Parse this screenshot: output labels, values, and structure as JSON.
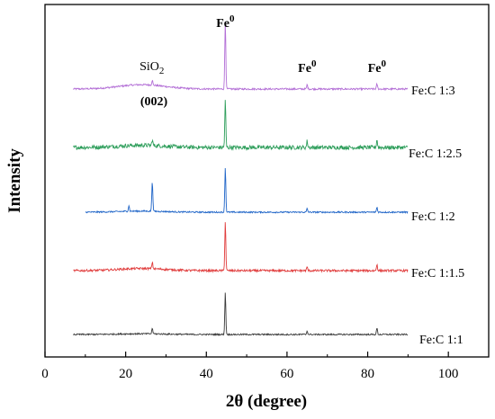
{
  "chart_data": {
    "type": "line",
    "title": "",
    "xlabel": "2θ (degree)",
    "ylabel": "Intensity",
    "xlim": [
      0,
      110
    ],
    "xticks": [
      0,
      20,
      40,
      60,
      80,
      100
    ],
    "yticks": false,
    "grid": false,
    "legend": "none",
    "series": [
      {
        "name": "Fe:C 1:3",
        "color": "#b36fd6",
        "x_range": [
          7,
          90
        ],
        "noise": 0.12,
        "hump": {
          "center": 24,
          "width": 8,
          "height": 0.6
        },
        "peaks": [
          {
            "x": 26.6,
            "height": 0.7
          },
          {
            "x": 44.7,
            "height": 9.5
          },
          {
            "x": 65.0,
            "height": 0.6
          },
          {
            "x": 82.3,
            "height": 0.7
          }
        ]
      },
      {
        "name": "Fe:C 1:2.5",
        "color": "#2e9e5b",
        "x_range": [
          7,
          90
        ],
        "noise": 0.28,
        "hump": {
          "center": 24,
          "width": 8,
          "height": 0.3
        },
        "peaks": [
          {
            "x": 26.6,
            "height": 0.8
          },
          {
            "x": 44.7,
            "height": 6.5
          },
          {
            "x": 65.0,
            "height": 0.9
          },
          {
            "x": 82.3,
            "height": 1.1
          }
        ]
      },
      {
        "name": "Fe:C 1:2",
        "color": "#2166c8",
        "x_range": [
          10,
          90
        ],
        "noise": 0.1,
        "hump": {
          "center": 24,
          "width": 8,
          "height": 0.15
        },
        "peaks": [
          {
            "x": 20.8,
            "height": 0.8
          },
          {
            "x": 26.6,
            "height": 4.2
          },
          {
            "x": 44.7,
            "height": 6.2
          },
          {
            "x": 65.0,
            "height": 0.5
          },
          {
            "x": 82.3,
            "height": 0.7
          }
        ]
      },
      {
        "name": "Fe:C 1:1.5",
        "color": "#e03c3c",
        "x_range": [
          7,
          90
        ],
        "noise": 0.15,
        "hump": {
          "center": 24,
          "width": 8,
          "height": 0.3
        },
        "peaks": [
          {
            "x": 26.6,
            "height": 0.9
          },
          {
            "x": 44.7,
            "height": 6.8
          },
          {
            "x": 65.0,
            "height": 0.5
          },
          {
            "x": 82.3,
            "height": 0.9
          }
        ]
      },
      {
        "name": "Fe:C 1:1",
        "color": "#3a3a3a",
        "x_range": [
          7,
          90
        ],
        "noise": 0.1,
        "hump": {
          "center": 24,
          "width": 8,
          "height": 0.1
        },
        "peaks": [
          {
            "x": 26.6,
            "height": 0.8
          },
          {
            "x": 44.7,
            "height": 5.8
          },
          {
            "x": 65.0,
            "height": 0.5
          },
          {
            "x": 82.3,
            "height": 0.9
          }
        ]
      }
    ],
    "annotations": [
      {
        "text": "SiO",
        "sub": "2",
        "x": 26.5,
        "series": "Fe:C 1:3"
      },
      {
        "text": "(002)",
        "sub": "",
        "x": 27.0,
        "series": "Fe:C 1:3",
        "below": true
      },
      {
        "text": "Fe",
        "sup": "0",
        "x": 44.7,
        "series": "Fe:C 1:3"
      },
      {
        "text": "Fe",
        "sup": "0",
        "x": 65.0,
        "series": "Fe:C 1:3"
      },
      {
        "text": "Fe",
        "sup": "0",
        "x": 82.3,
        "series": "Fe:C 1:3"
      }
    ]
  }
}
